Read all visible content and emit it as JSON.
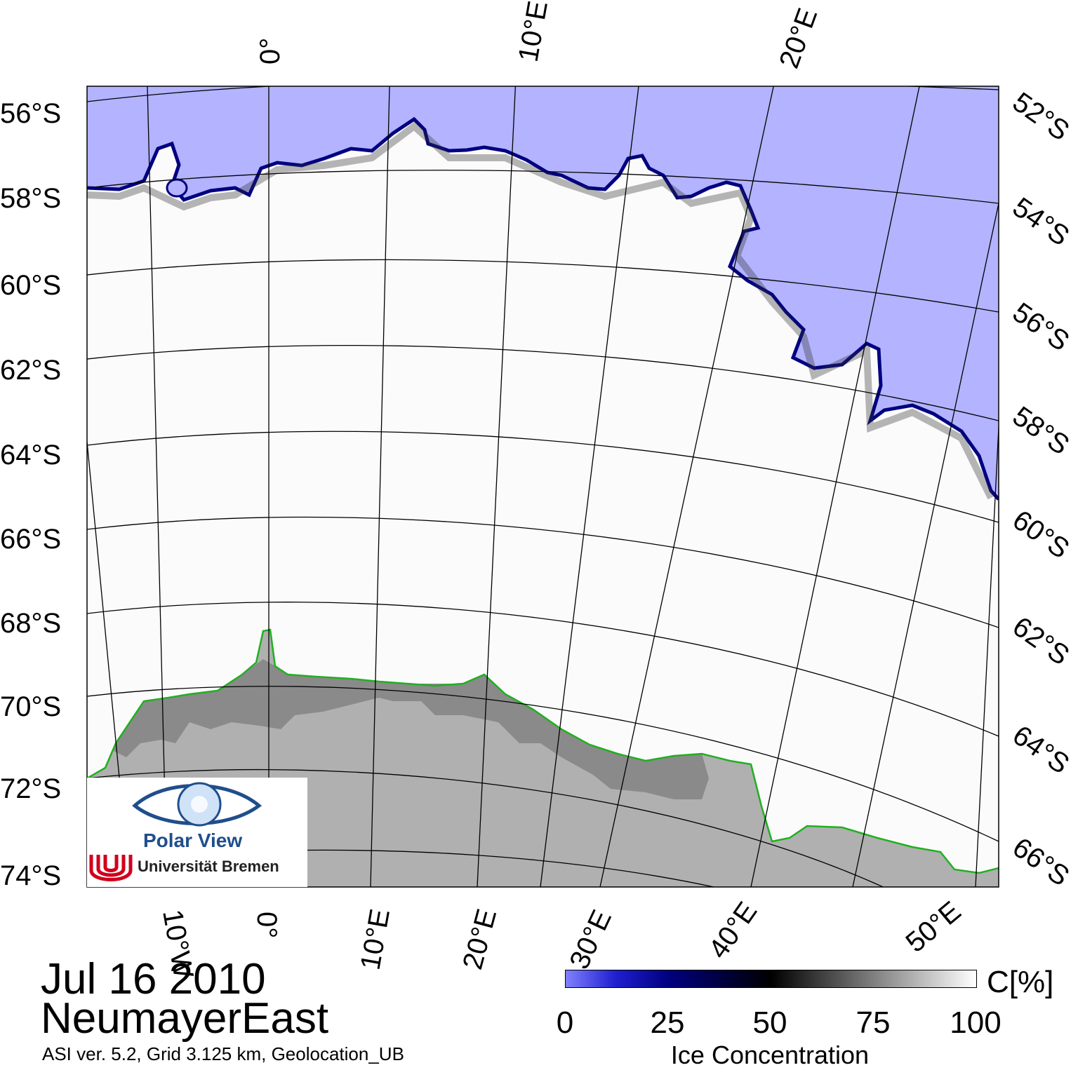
{
  "map": {
    "date": "Jul 16 2010",
    "region": "NeumayerEast",
    "meta": "ASI ver. 5.2,  Grid 3.125 km, Geolocation_UB",
    "colors": {
      "open_water": "#b3b3ff",
      "ice_edge": "#000080",
      "sea_ice": "#fafafa",
      "land_ice": "#b0b0b0",
      "land_ice_dark": "#808080",
      "coastline": "#20b020",
      "graticule": "#000000"
    },
    "lat_labels_left": [
      "56°S",
      "58°S",
      "60°S",
      "62°S",
      "64°S",
      "66°S",
      "68°S",
      "70°S",
      "72°S",
      "74°S"
    ],
    "lat_labels_right": [
      "52°S",
      "54°S",
      "56°S",
      "58°S",
      "60°S",
      "62°S",
      "64°S",
      "66°S"
    ],
    "lon_labels_top": [
      "0°",
      "10°E",
      "20°E"
    ],
    "lon_labels_bottom": [
      "10°W",
      "0°",
      "10°E",
      "20°E",
      "30°E",
      "40°E",
      "50°E"
    ]
  },
  "colorbar": {
    "unit": "C[%]",
    "title": "Ice Concentration",
    "ticks": [
      "0",
      "25",
      "50",
      "75",
      "100"
    ]
  },
  "logo": {
    "name": "Polar View",
    "institution": "Universität Bremen"
  }
}
